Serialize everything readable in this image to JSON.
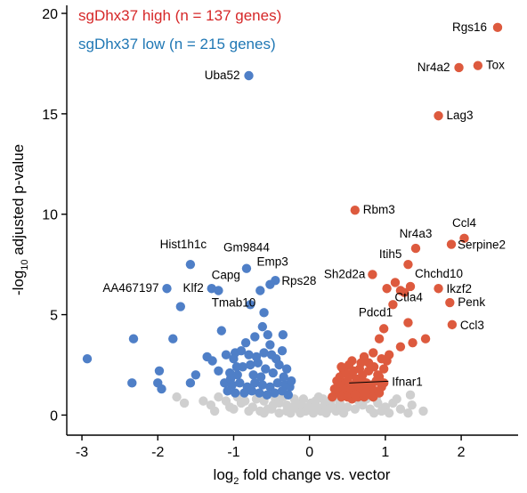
{
  "chart_data": {
    "type": "scatter",
    "title": "",
    "xlabel": {
      "prefix": "log",
      "sub": "2",
      "suffix": " fold change vs. vector"
    },
    "ylabel": {
      "prefix": "-log",
      "sub": "10",
      "suffix": " adjusted p-value"
    },
    "xlim": [
      -3.2,
      2.75
    ],
    "ylim": [
      -1.0,
      20.4
    ],
    "xticks": [
      -3,
      -2,
      -1,
      0,
      1,
      2
    ],
    "yticks": [
      0,
      5,
      10,
      15,
      20
    ],
    "grid": false,
    "legend": {
      "placement": "top-left",
      "entries": [
        {
          "name": "sgDhx37 high (n = 137 genes)",
          "color": "#d62728"
        },
        {
          "name": "sgDhx37 low (n = 215 genes)",
          "color": "#1f77b4"
        }
      ]
    },
    "colors": {
      "high": "#dd5a3e",
      "low": "#4f7fc7",
      "ns": "#cfcfcf"
    },
    "series": [
      {
        "group": "high",
        "points": [
          [
            2.48,
            19.3
          ],
          [
            2.22,
            17.4
          ],
          [
            1.97,
            17.3
          ],
          [
            1.7,
            14.9
          ],
          [
            0.6,
            10.2
          ],
          [
            2.04,
            8.8
          ],
          [
            1.87,
            8.5
          ],
          [
            1.4,
            8.3
          ],
          [
            1.3,
            7.5
          ],
          [
            0.83,
            7.0
          ],
          [
            1.13,
            6.6
          ],
          [
            1.7,
            6.3
          ],
          [
            1.85,
            5.6
          ],
          [
            1.02,
            6.3
          ],
          [
            1.33,
            6.4
          ],
          [
            1.1,
            5.5
          ],
          [
            0.98,
            4.3
          ],
          [
            1.3,
            4.6
          ],
          [
            1.88,
            4.5
          ],
          [
            0.92,
            3.8
          ],
          [
            1.53,
            3.8
          ],
          [
            1.36,
            3.6
          ],
          [
            1.2,
            3.4
          ],
          [
            1.05,
            3.0
          ],
          [
            0.84,
            3.1
          ],
          [
            0.72,
            2.9
          ],
          [
            0.56,
            2.7
          ],
          [
            1.25,
            6.1
          ],
          [
            1.2,
            6.2
          ],
          [
            0.45,
            2.2
          ],
          [
            0.55,
            2.0
          ],
          [
            0.62,
            1.8
          ],
          [
            0.7,
            1.7
          ],
          [
            0.4,
            1.9
          ],
          [
            0.48,
            1.6
          ],
          [
            0.58,
            1.5
          ],
          [
            0.66,
            1.4
          ],
          [
            0.75,
            1.6
          ],
          [
            0.82,
            1.5
          ],
          [
            0.38,
            1.4
          ],
          [
            0.44,
            1.2
          ],
          [
            0.52,
            1.2
          ],
          [
            0.6,
            1.1
          ],
          [
            0.68,
            1.2
          ],
          [
            0.76,
            1.3
          ],
          [
            0.86,
            1.2
          ],
          [
            0.92,
            1.9
          ],
          [
            0.35,
            1.1
          ],
          [
            0.42,
            0.9
          ],
          [
            0.5,
            0.9
          ],
          [
            0.56,
            0.8
          ],
          [
            0.64,
            0.9
          ],
          [
            0.72,
            0.9
          ],
          [
            0.8,
            1.0
          ],
          [
            0.88,
            1.1
          ],
          [
            0.95,
            1.4
          ],
          [
            0.3,
            0.9
          ],
          [
            0.33,
            1.3
          ],
          [
            0.46,
            1.4
          ],
          [
            0.54,
            1.3
          ],
          [
            0.62,
            1.5
          ],
          [
            0.7,
            2.0
          ],
          [
            0.78,
            2.2
          ],
          [
            0.85,
            2.4
          ],
          [
            0.9,
            2.0
          ],
          [
            0.98,
            2.3
          ],
          [
            0.66,
            2.3
          ],
          [
            0.52,
            2.5
          ],
          [
            0.4,
            1.6
          ],
          [
            0.6,
            1.0
          ],
          [
            0.74,
            1.1
          ],
          [
            0.84,
            0.9
          ],
          [
            0.92,
            1.1
          ],
          [
            0.36,
            1.7
          ],
          [
            0.48,
            2.1
          ],
          [
            1.02,
            2.7
          ],
          [
            0.95,
            2.8
          ],
          [
            0.5,
            1.7
          ],
          [
            0.68,
            2.6
          ],
          [
            0.78,
            2.6
          ],
          [
            0.42,
            2.4
          ],
          [
            0.58,
            2.2
          ],
          [
            0.88,
            1.7
          ],
          [
            0.98,
            1.6
          ]
        ]
      },
      {
        "group": "low",
        "points": [
          [
            -0.8,
            16.9
          ],
          [
            -1.57,
            7.5
          ],
          [
            -0.83,
            7.3
          ],
          [
            -1.88,
            6.3
          ],
          [
            -1.29,
            6.3
          ],
          [
            -1.7,
            5.4
          ],
          [
            -1.2,
            6.2
          ],
          [
            -0.78,
            5.5
          ],
          [
            -0.65,
            6.2
          ],
          [
            -0.45,
            6.7
          ],
          [
            -0.52,
            6.5
          ],
          [
            -0.6,
            5.1
          ],
          [
            -2.93,
            2.8
          ],
          [
            -2.32,
            3.8
          ],
          [
            -1.8,
            3.8
          ],
          [
            -2.34,
            1.6
          ],
          [
            -1.98,
            2.2
          ],
          [
            -1.95,
            1.3
          ],
          [
            -2.0,
            1.6
          ],
          [
            -1.57,
            1.6
          ],
          [
            -1.5,
            2.0
          ],
          [
            -1.35,
            2.9
          ],
          [
            -1.28,
            2.7
          ],
          [
            -1.1,
            3.0
          ],
          [
            -1.16,
            4.2
          ],
          [
            -0.98,
            3.1
          ],
          [
            -0.55,
            4.0
          ],
          [
            -0.62,
            4.4
          ],
          [
            -0.35,
            4.0
          ],
          [
            -0.52,
            3.5
          ],
          [
            -1.2,
            2.2
          ],
          [
            -1.05,
            2.1
          ],
          [
            -0.95,
            2.0
          ],
          [
            -0.88,
            2.4
          ],
          [
            -0.78,
            2.5
          ],
          [
            -0.68,
            2.6
          ],
          [
            -0.58,
            2.3
          ],
          [
            -0.48,
            2.1
          ],
          [
            -0.4,
            2.5
          ],
          [
            -0.3,
            2.3
          ],
          [
            -1.12,
            1.6
          ],
          [
            -1.02,
            1.5
          ],
          [
            -0.92,
            1.6
          ],
          [
            -0.82,
            1.4
          ],
          [
            -0.72,
            1.6
          ],
          [
            -0.62,
            1.5
          ],
          [
            -0.52,
            1.4
          ],
          [
            -0.42,
            1.6
          ],
          [
            -0.32,
            1.5
          ],
          [
            -0.26,
            1.4
          ],
          [
            -1.08,
            1.2
          ],
          [
            -0.98,
            1.1
          ],
          [
            -0.86,
            1.1
          ],
          [
            -0.76,
            1.2
          ],
          [
            -0.66,
            1.1
          ],
          [
            -0.56,
            1.0
          ],
          [
            -0.46,
            1.1
          ],
          [
            -0.36,
            1.2
          ],
          [
            -0.28,
            1.0
          ],
          [
            -1.0,
            2.8
          ],
          [
            -0.9,
            3.2
          ],
          [
            -0.8,
            3.0
          ],
          [
            -0.7,
            2.9
          ],
          [
            -0.6,
            3.1
          ],
          [
            -0.44,
            2.8
          ],
          [
            -0.36,
            3.2
          ],
          [
            -0.84,
            3.6
          ],
          [
            -0.72,
            3.9
          ],
          [
            -0.5,
            3.0
          ],
          [
            -0.96,
            2.4
          ],
          [
            -1.04,
            1.8
          ],
          [
            -0.74,
            2.0
          ],
          [
            -0.64,
            1.9
          ],
          [
            -0.34,
            1.9
          ],
          [
            -0.24,
            1.7
          ]
        ]
      },
      {
        "group": "ns",
        "points": [
          [
            -1.65,
            0.6
          ],
          [
            -1.3,
            0.5
          ],
          [
            -1.05,
            0.4
          ],
          [
            -1.75,
            0.9
          ],
          [
            -1.2,
            0.9
          ],
          [
            -0.9,
            0.6
          ],
          [
            -0.75,
            0.4
          ],
          [
            -0.6,
            0.7
          ],
          [
            -0.5,
            0.3
          ],
          [
            -0.4,
            0.6
          ],
          [
            -0.3,
            0.5
          ],
          [
            -0.22,
            0.4
          ],
          [
            -0.15,
            0.3
          ],
          [
            -0.1,
            0.5
          ],
          [
            -0.05,
            0.2
          ],
          [
            0.0,
            0.3
          ],
          [
            0.05,
            0.1
          ],
          [
            0.1,
            0.4
          ],
          [
            0.15,
            0.2
          ],
          [
            0.2,
            0.5
          ],
          [
            0.25,
            0.3
          ],
          [
            0.3,
            0.4
          ],
          [
            -0.2,
            0.8
          ],
          [
            -0.35,
            0.9
          ],
          [
            -0.45,
            0.8
          ],
          [
            -0.55,
            0.3
          ],
          [
            -0.65,
            0.2
          ],
          [
            -0.8,
            0.2
          ],
          [
            -0.95,
            0.9
          ],
          [
            -1.1,
            0.7
          ],
          [
            -1.4,
            0.7
          ],
          [
            -0.25,
            0.1
          ],
          [
            -0.12,
            0.1
          ],
          [
            0.08,
            0.7
          ],
          [
            0.18,
            0.8
          ],
          [
            0.28,
            0.7
          ],
          [
            0.4,
            0.6
          ],
          [
            0.5,
            0.4
          ],
          [
            0.6,
            0.3
          ],
          [
            0.7,
            0.5
          ],
          [
            0.8,
            0.3
          ],
          [
            0.9,
            0.6
          ],
          [
            1.0,
            0.4
          ],
          [
            1.1,
            0.6
          ],
          [
            1.2,
            0.3
          ],
          [
            1.35,
            0.5
          ],
          [
            1.5,
            0.2
          ],
          [
            0.35,
            0.2
          ],
          [
            0.45,
            0.1
          ],
          [
            0.65,
            0.7
          ],
          [
            0.75,
            0.8
          ],
          [
            0.85,
            0.1
          ],
          [
            0.95,
            0.2
          ],
          [
            1.05,
            0.1
          ],
          [
            1.3,
            0.1
          ],
          [
            -0.7,
            0.8
          ],
          [
            -0.85,
            0.7
          ],
          [
            -1.0,
            0.3
          ],
          [
            0.12,
            0.9
          ],
          [
            -0.08,
            0.8
          ],
          [
            0.02,
            0.6
          ],
          [
            -0.18,
            0.6
          ],
          [
            0.22,
            0.1
          ],
          [
            -0.3,
            0.2
          ],
          [
            1.33,
            1.0
          ],
          [
            -0.4,
            0.1
          ],
          [
            0.55,
            0.9
          ],
          [
            -0.02,
            0.4
          ],
          [
            0.42,
            0.4
          ],
          [
            -0.48,
            0.5
          ],
          [
            1.15,
            0.8
          ],
          [
            -0.6,
            0.1
          ],
          [
            0.32,
            0.9
          ],
          [
            0.88,
            0.8
          ],
          [
            -1.25,
            0.2
          ]
        ]
      }
    ],
    "annotations": [
      {
        "label": "Rgs16",
        "x": 2.48,
        "y": 19.3,
        "anchor": "end",
        "dx": -12,
        "dy": 4
      },
      {
        "label": "Nr4a2",
        "x": 1.97,
        "y": 17.3,
        "anchor": "end",
        "dx": -10,
        "dy": 4
      },
      {
        "label": "Tox",
        "x": 2.22,
        "y": 17.4,
        "anchor": "start",
        "dx": 9,
        "dy": 4
      },
      {
        "label": "Lag3",
        "x": 1.7,
        "y": 14.9,
        "anchor": "start",
        "dx": 9,
        "dy": 4
      },
      {
        "label": "Rbm3",
        "x": 0.6,
        "y": 10.2,
        "anchor": "start",
        "dx": 9,
        "dy": 4
      },
      {
        "label": "Ccl4",
        "x": 2.04,
        "y": 8.8,
        "anchor": "middle",
        "dx": 0,
        "dy": -13
      },
      {
        "label": "Nr4a3",
        "x": 1.4,
        "y": 8.3,
        "anchor": "middle",
        "dx": 0,
        "dy": -12
      },
      {
        "label": "Serpine2",
        "x": 1.87,
        "y": 8.5,
        "anchor": "start",
        "dx": 7,
        "dy": 5
      },
      {
        "label": "Itih5",
        "x": 1.3,
        "y": 7.5,
        "anchor": "end",
        "dx": -7,
        "dy": -7
      },
      {
        "label": "Sh2d2a",
        "x": 0.83,
        "y": 7.0,
        "anchor": "end",
        "dx": -8,
        "dy": 4
      },
      {
        "label": "Chchd10",
        "x": 1.33,
        "y": 6.4,
        "anchor": "start",
        "dx": 5,
        "dy": -10
      },
      {
        "label": "Ikzf2",
        "x": 1.7,
        "y": 6.3,
        "anchor": "start",
        "dx": 9,
        "dy": 5
      },
      {
        "label": "Ctla4",
        "x": 1.1,
        "y": 5.5,
        "anchor": "start",
        "dx": 2,
        "dy": -4
      },
      {
        "label": "Penk",
        "x": 1.85,
        "y": 5.6,
        "anchor": "start",
        "dx": 9,
        "dy": 4
      },
      {
        "label": "Pdcd1",
        "x": 0.98,
        "y": 4.3,
        "anchor": "end",
        "dx": 10,
        "dy": -14
      },
      {
        "label": "Ccl3",
        "x": 1.88,
        "y": 4.5,
        "anchor": "start",
        "dx": 9,
        "dy": 5
      },
      {
        "label": "Ifnar1",
        "x": 0.5,
        "y": 1.6,
        "anchor": "start",
        "dx": 50,
        "dy": 3,
        "line": true
      },
      {
        "label": "Uba52",
        "x": -0.8,
        "y": 16.9,
        "anchor": "end",
        "dx": -10,
        "dy": 4
      },
      {
        "label": "Hist1h1c",
        "x": -1.57,
        "y": 7.5,
        "anchor": "middle",
        "dx": -8,
        "dy": -18
      },
      {
        "label": "Gm9844",
        "x": -0.83,
        "y": 7.3,
        "anchor": "middle",
        "dx": 0,
        "dy": -19
      },
      {
        "label": "Emp3",
        "x": -0.8,
        "y": 7.3,
        "anchor": "start",
        "dx": 9,
        "dy": -3
      },
      {
        "label": "Capg",
        "x": -0.83,
        "y": 7.3,
        "anchor": "end",
        "dx": -7,
        "dy": 12
      },
      {
        "label": "Rps28",
        "x": -0.45,
        "y": 6.7,
        "anchor": "start",
        "dx": 7,
        "dy": 5
      },
      {
        "label": "AA467197",
        "x": -1.88,
        "y": 6.3,
        "anchor": "end",
        "dx": -9,
        "dy": 4
      },
      {
        "label": "Klf2",
        "x": -1.29,
        "y": 6.3,
        "anchor": "end",
        "dx": -9,
        "dy": 4
      },
      {
        "label": "Tmab10",
        "x": -1.0,
        "y": 5.9,
        "anchor": "middle",
        "dx": 0,
        "dy": 11
      }
    ]
  }
}
